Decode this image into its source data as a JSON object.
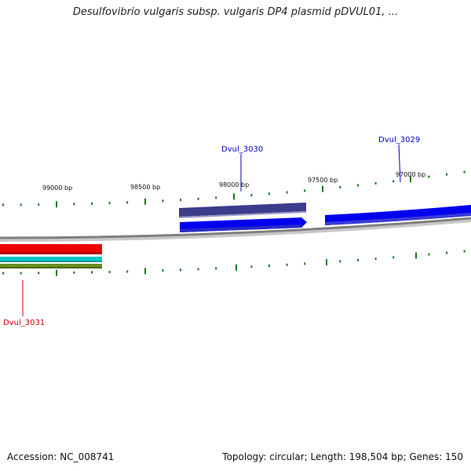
{
  "title": "Desulfovibrio vulgaris subsp. vulgaris DP4 plasmid pDVUL01, ...",
  "footer": {
    "accession": "Accession: NC_008741",
    "summary": "Topology: circular; Length: 198,504 bp; Genes: 150"
  },
  "scale": {
    "tick_labels": [
      "99000 bp",
      "98500 bp",
      "98000 bp",
      "97500 bp",
      "97000 bp"
    ]
  },
  "genes": [
    {
      "name": "Dvul_3030",
      "label_color": "#0000cc"
    },
    {
      "name": "Dvul_3029",
      "label_color": "#0000cc"
    },
    {
      "name": "Dvul_3031",
      "label_color": "#cc0000"
    }
  ],
  "colors": {
    "backbone": "#808080",
    "tick": "#1a7a1a",
    "gene_forward": "#0000ee",
    "gene_dark": "#3c3c8c",
    "gene_red": "#ee0000",
    "gene_cyan": "#00c8c8",
    "gene_olive": "#6b8e23"
  }
}
